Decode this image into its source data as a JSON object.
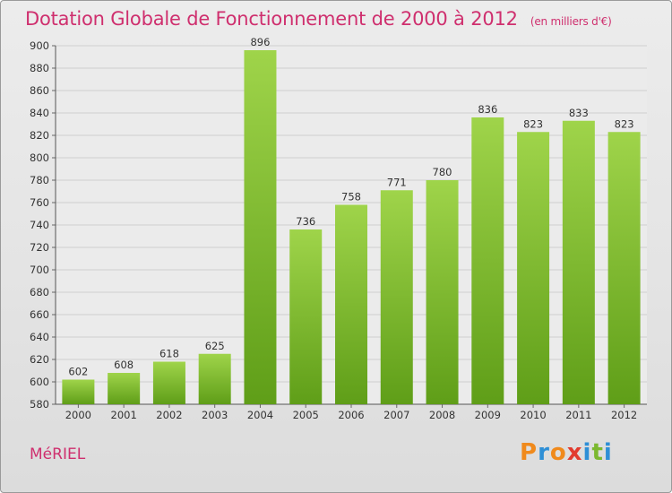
{
  "chart_data": {
    "type": "bar",
    "title": "Dotation Globale de Fonctionnement de 2000 à 2012",
    "subtitle": "(en milliers d'€)",
    "categories": [
      "2000",
      "2001",
      "2002",
      "2003",
      "2004",
      "2005",
      "2006",
      "2007",
      "2008",
      "2009",
      "2010",
      "2011",
      "2012"
    ],
    "values": [
      602,
      608,
      618,
      625,
      896,
      736,
      758,
      771,
      780,
      836,
      823,
      833,
      823
    ],
    "ylim": [
      580,
      900
    ],
    "yticks": [
      580,
      600,
      620,
      640,
      660,
      680,
      700,
      720,
      740,
      760,
      780,
      800,
      820,
      840,
      860,
      880,
      900
    ],
    "grid": true,
    "bar_color": "#7fbf2e",
    "value_labels": true
  },
  "footer": {
    "commune": "MéRIEL",
    "logo_text": "Proxiti"
  },
  "colors": {
    "title": "#cf2f6e",
    "logo": [
      "#f08a1c",
      "#2e8fd6",
      "#f08a1c",
      "#e23b2f",
      "#2e8fd6",
      "#7cb82f",
      "#2e8fd6"
    ]
  }
}
